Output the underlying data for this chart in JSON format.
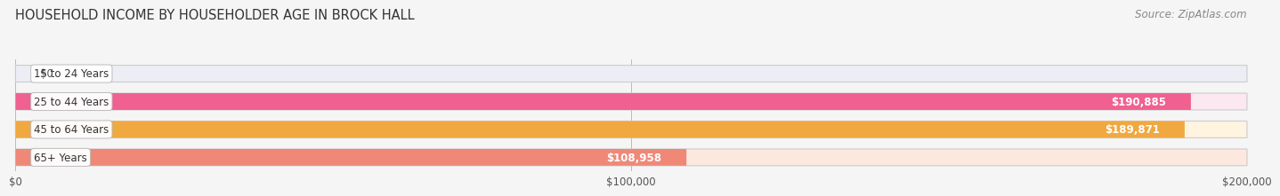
{
  "title": "HOUSEHOLD INCOME BY HOUSEHOLDER AGE IN BROCK HALL",
  "source": "Source: ZipAtlas.com",
  "categories": [
    "15 to 24 Years",
    "25 to 44 Years",
    "45 to 64 Years",
    "65+ Years"
  ],
  "values": [
    0,
    190885,
    189871,
    108958
  ],
  "bar_colors": [
    "#a8a8d8",
    "#f06090",
    "#f0a840",
    "#f08878"
  ],
  "bar_bg_colors": [
    "#ededf5",
    "#fce8f0",
    "#fef4e0",
    "#fde8e0"
  ],
  "value_labels": [
    "$0",
    "$190,885",
    "$189,871",
    "$108,958"
  ],
  "xmax": 200000,
  "xticks": [
    0,
    100000,
    200000
  ],
  "xtick_labels": [
    "$0",
    "$100,000",
    "$200,000"
  ],
  "background_color": "#f5f5f5",
  "title_fontsize": 10.5,
  "source_fontsize": 8.5
}
